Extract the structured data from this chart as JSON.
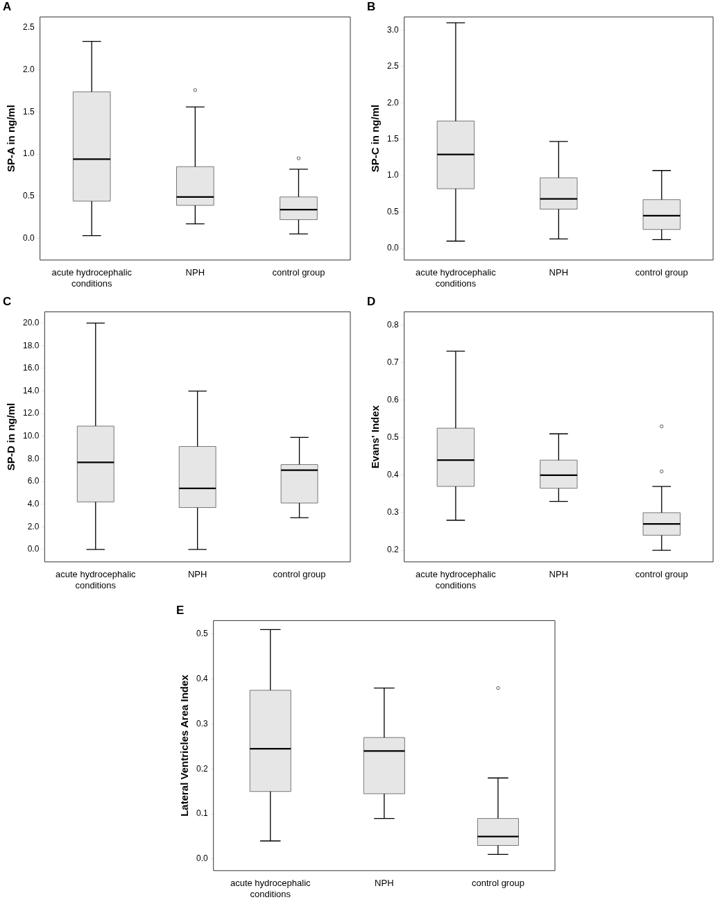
{
  "chart_data": [
    {
      "type": "box",
      "title": "A",
      "ylabel": "SP-A in ng/ml",
      "categories": [
        "acute hydrocephalic conditions",
        "NPH",
        "control group"
      ],
      "ylim": [
        -0.26,
        2.63
      ],
      "yticks": [
        {
          "value": 0,
          "label": "0.0"
        },
        {
          "value": 0.5,
          "label": "0.5"
        },
        {
          "value": 1,
          "label": "1.0"
        },
        {
          "value": 1.5,
          "label": "1.5"
        },
        {
          "value": 2,
          "label": "2.0"
        },
        {
          "value": 2.5,
          "label": "2.5"
        }
      ],
      "series": [
        {
          "color": "#e6e6e6",
          "boxes": [
            {
              "low": 0.03,
              "q1": 0.44,
              "median": 0.94,
              "q3": 1.74,
              "high": 2.34
            },
            {
              "low": 0.17,
              "q1": 0.39,
              "median": 0.49,
              "q3": 0.85,
              "high": 1.56,
              "outliers": [
                1.76
              ]
            },
            {
              "low": 0.05,
              "q1": 0.22,
              "median": 0.34,
              "q3": 0.49,
              "high": 0.82,
              "outliers": [
                0.95
              ]
            }
          ]
        }
      ]
    },
    {
      "type": "box",
      "title": "B",
      "ylabel": "SP-C in ng/ml",
      "categories": [
        "acute hydrocephalic conditions",
        "NPH",
        "control group"
      ],
      "ylim": [
        -0.16,
        3.18
      ],
      "yticks": [
        {
          "value": 0,
          "label": "0.0"
        },
        {
          "value": 0.5,
          "label": "0.5"
        },
        {
          "value": 1,
          "label": "1.0"
        },
        {
          "value": 1.5,
          "label": "1.5"
        },
        {
          "value": 2,
          "label": "2.0"
        },
        {
          "value": 2.5,
          "label": "2.5"
        },
        {
          "value": 3,
          "label": "3.0"
        }
      ],
      "series": [
        {
          "color": "#e6e6e6",
          "boxes": [
            {
              "low": 0.1,
              "q1": 0.82,
              "median": 1.29,
              "q3": 1.75,
              "high": 3.1
            },
            {
              "low": 0.13,
              "q1": 0.54,
              "median": 0.68,
              "q3": 0.97,
              "high": 1.47
            },
            {
              "low": 0.12,
              "q1": 0.26,
              "median": 0.45,
              "q3": 0.67,
              "high": 1.07
            }
          ]
        }
      ]
    },
    {
      "type": "box",
      "title": "C",
      "ylabel": "SP-D in ng/ml",
      "categories": [
        "acute hydrocephalic conditions",
        "NPH",
        "control group"
      ],
      "ylim": [
        -1.1,
        21
      ],
      "yticks": [
        {
          "value": 0,
          "label": "0.0"
        },
        {
          "value": 2,
          "label": "2.0"
        },
        {
          "value": 4,
          "label": "4.0"
        },
        {
          "value": 6,
          "label": "6.0"
        },
        {
          "value": 8,
          "label": "8.0"
        },
        {
          "value": 10,
          "label": "10.0"
        },
        {
          "value": 12,
          "label": "12.0"
        },
        {
          "value": 14,
          "label": "14.0"
        },
        {
          "value": 16,
          "label": "16.0"
        },
        {
          "value": 18,
          "label": "18.0"
        },
        {
          "value": 20,
          "label": "20.0"
        }
      ],
      "series": [
        {
          "color": "#e6e6e6",
          "boxes": [
            {
              "low": 0,
              "q1": 4.2,
              "median": 7.7,
              "q3": 10.9,
              "high": 20
            },
            {
              "low": 0,
              "q1": 3.7,
              "median": 5.4,
              "q3": 9.1,
              "high": 14
            },
            {
              "low": 2.8,
              "q1": 4.1,
              "median": 7,
              "q3": 7.5,
              "high": 9.9
            }
          ]
        }
      ]
    },
    {
      "type": "box",
      "title": "D",
      "ylabel": "Evans' Index",
      "categories": [
        "acute hydrocephalic conditions",
        "NPH",
        "control group"
      ],
      "ylim": [
        0.169,
        0.835
      ],
      "yticks": [
        0.2,
        0.3,
        0.4,
        0.5,
        0.6,
        0.7,
        0.8
      ],
      "series": [
        {
          "color": "#e6e6e6",
          "boxes": [
            {
              "low": 0.28,
              "q1": 0.37,
              "median": 0.44,
              "q3": 0.525,
              "high": 0.73
            },
            {
              "low": 0.33,
              "q1": 0.365,
              "median": 0.4,
              "q3": 0.44,
              "high": 0.51
            },
            {
              "low": 0.2,
              "q1": 0.24,
              "median": 0.27,
              "q3": 0.3,
              "high": 0.37,
              "outliers": [
                0.41,
                0.53
              ]
            }
          ]
        }
      ]
    },
    {
      "type": "box",
      "title": "E",
      "ylabel": "Lateral Ventricles Area Index",
      "categories": [
        "acute hydrocephalic conditions",
        "NPH",
        "control group"
      ],
      "ylim": [
        -0.026,
        0.53
      ],
      "yticks": [
        {
          "value": 0,
          "label": "0.0"
        },
        0.1,
        0.2,
        0.3,
        0.4,
        0.5
      ],
      "series": [
        {
          "color": "#e6e6e6",
          "boxes": [
            {
              "low": 0.04,
              "q1": 0.15,
              "median": 0.245,
              "q3": 0.375,
              "high": 0.51
            },
            {
              "low": 0.09,
              "q1": 0.145,
              "median": 0.24,
              "q3": 0.27,
              "high": 0.38
            },
            {
              "low": 0.01,
              "q1": 0.03,
              "median": 0.05,
              "q3": 0.09,
              "high": 0.18,
              "outliers": [
                0.38
              ]
            }
          ]
        }
      ]
    }
  ]
}
